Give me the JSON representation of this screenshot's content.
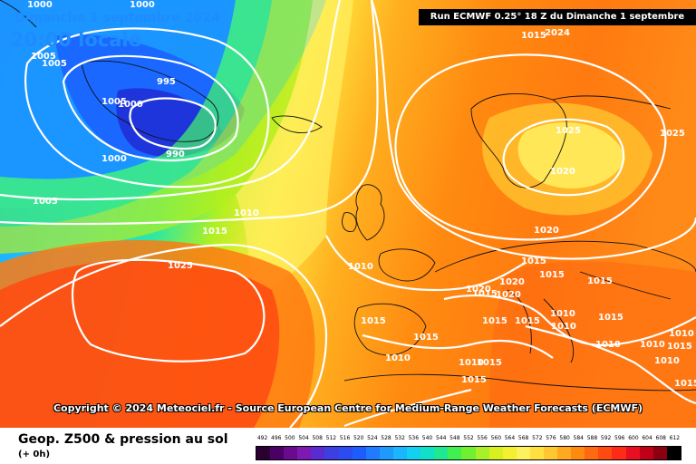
{
  "header": {
    "date": "Dimanche 1 septembre 2024",
    "time": "20:00 locale",
    "run": "Run ECMWF 0.25° 18 Z du Dimanche 1 septembre 2024"
  },
  "copyright": "Copyright © 2024 Meteociel.fr - Source European Centre for Medium-Range Weather Forecasts (ECMWF)",
  "footer": {
    "title": "Geop. Z500 & pression au sol",
    "subtitle": "(+ 0h)"
  },
  "isobar_labels": [
    {
      "text": "1000"
    },
    {
      "text": "1000"
    },
    {
      "text": "1005"
    },
    {
      "text": "1005"
    },
    {
      "text": "1005"
    },
    {
      "text": "1000"
    },
    {
      "text": "995"
    },
    {
      "text": "990"
    },
    {
      "text": "1000"
    },
    {
      "text": "1005"
    },
    {
      "text": "1010"
    },
    {
      "text": "1015"
    },
    {
      "text": "1025"
    },
    {
      "text": "1015"
    },
    {
      "text": "1020"
    },
    {
      "text": "1015"
    },
    {
      "text": "1025"
    },
    {
      "text": "1020"
    },
    {
      "text": "1025"
    },
    {
      "text": "1020"
    },
    {
      "text": "1010"
    },
    {
      "text": "1015"
    },
    {
      "text": "1020"
    },
    {
      "text": "1020"
    },
    {
      "text": "1015"
    },
    {
      "text": "1015"
    },
    {
      "text": "1015"
    },
    {
      "text": "1015"
    },
    {
      "text": "1015"
    },
    {
      "text": "1010"
    },
    {
      "text": "1010"
    },
    {
      "text": "1015"
    },
    {
      "text": "1010"
    },
    {
      "text": "1010"
    },
    {
      "text": "1010"
    },
    {
      "text": "1015"
    },
    {
      "text": "1010"
    },
    {
      "text": "1015"
    },
    {
      "text": "1010"
    },
    {
      "text": "1010"
    },
    {
      "text": "1015"
    },
    {
      "text": "1015"
    },
    {
      "text": "1015"
    }
  ],
  "scale": {
    "labels": [
      "492",
      "496",
      "500",
      "504",
      "508",
      "512",
      "516",
      "520",
      "524",
      "528",
      "532",
      "536",
      "540",
      "544",
      "548",
      "552",
      "556",
      "560",
      "564",
      "568",
      "572",
      "576",
      "580",
      "584",
      "588",
      "592",
      "596",
      "600",
      "604",
      "608",
      "612"
    ],
    "colors": [
      "#2a0030",
      "#4b0066",
      "#6a0a8c",
      "#7d18b0",
      "#5a2bd0",
      "#3d3fe0",
      "#2a4cf0",
      "#1f5cff",
      "#1f7bff",
      "#1e9aff",
      "#1ab6ff",
      "#14d0f0",
      "#10e0c8",
      "#20e890",
      "#40f050",
      "#70f030",
      "#a8f028",
      "#d8f020",
      "#f4f030",
      "#fff060",
      "#ffe040",
      "#ffc830",
      "#ffa820",
      "#ff8a10",
      "#ff6a10",
      "#ff4a10",
      "#ff2a18",
      "#e81020",
      "#c00018",
      "#8a0010",
      "#000000"
    ]
  }
}
